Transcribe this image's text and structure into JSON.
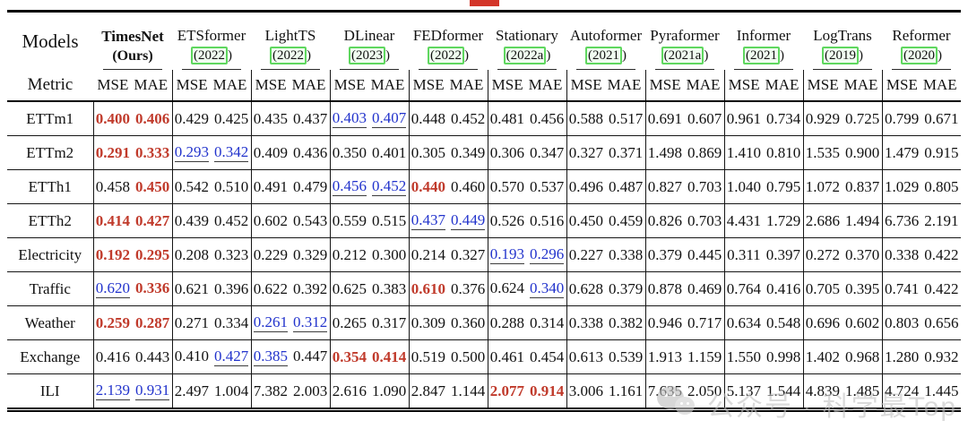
{
  "decorations": {
    "red_fragment_color": "#d3362a"
  },
  "watermark": {
    "icon": "wechat-icon",
    "text": "公众号 · 科学最Top"
  },
  "colors": {
    "best": "#c03a2b",
    "second": "#2233cc",
    "text": "#111111",
    "link_box_border": "#5fd75f"
  },
  "table": {
    "corner_models_label": "Models",
    "corner_metric_label": "Metric",
    "metric_labels": [
      "MSE",
      "MAE"
    ],
    "models": [
      {
        "name": "TimesNet",
        "year": "(Ours)",
        "ours": true
      },
      {
        "name": "ETSformer",
        "year": "2022"
      },
      {
        "name": "LightTS",
        "year": "2022"
      },
      {
        "name": "DLinear",
        "year": "2023"
      },
      {
        "name": "FEDformer",
        "year": "2022"
      },
      {
        "name": "Stationary",
        "year": "2022a"
      },
      {
        "name": "Autoformer",
        "year": "2021"
      },
      {
        "name": "Pyraformer",
        "year": "2021a"
      },
      {
        "name": "Informer",
        "year": "2021"
      },
      {
        "name": "LogTrans",
        "year": "2019"
      },
      {
        "name": "Reformer",
        "year": "2020"
      }
    ],
    "style_legend": {
      "r": "best (red bold)",
      "u": "second-best (blue underlined)",
      "n": "plain"
    },
    "rows": [
      {
        "dataset": "ETTm1",
        "cells": [
          [
            "0.400",
            "r",
            "0.406",
            "r"
          ],
          [
            "0.429",
            "n",
            "0.425",
            "n"
          ],
          [
            "0.435",
            "n",
            "0.437",
            "n"
          ],
          [
            "0.403",
            "u",
            "0.407",
            "u"
          ],
          [
            "0.448",
            "n",
            "0.452",
            "n"
          ],
          [
            "0.481",
            "n",
            "0.456",
            "n"
          ],
          [
            "0.588",
            "n",
            "0.517",
            "n"
          ],
          [
            "0.691",
            "n",
            "0.607",
            "n"
          ],
          [
            "0.961",
            "n",
            "0.734",
            "n"
          ],
          [
            "0.929",
            "n",
            "0.725",
            "n"
          ],
          [
            "0.799",
            "n",
            "0.671",
            "n"
          ]
        ]
      },
      {
        "dataset": "ETTm2",
        "cells": [
          [
            "0.291",
            "r",
            "0.333",
            "r"
          ],
          [
            "0.293",
            "u",
            "0.342",
            "u"
          ],
          [
            "0.409",
            "n",
            "0.436",
            "n"
          ],
          [
            "0.350",
            "n",
            "0.401",
            "n"
          ],
          [
            "0.305",
            "n",
            "0.349",
            "n"
          ],
          [
            "0.306",
            "n",
            "0.347",
            "n"
          ],
          [
            "0.327",
            "n",
            "0.371",
            "n"
          ],
          [
            "1.498",
            "n",
            "0.869",
            "n"
          ],
          [
            "1.410",
            "n",
            "0.810",
            "n"
          ],
          [
            "1.535",
            "n",
            "0.900",
            "n"
          ],
          [
            "1.479",
            "n",
            "0.915",
            "n"
          ]
        ]
      },
      {
        "dataset": "ETTh1",
        "cells": [
          [
            "0.458",
            "n",
            "0.450",
            "r"
          ],
          [
            "0.542",
            "n",
            "0.510",
            "n"
          ],
          [
            "0.491",
            "n",
            "0.479",
            "n"
          ],
          [
            "0.456",
            "u",
            "0.452",
            "u"
          ],
          [
            "0.440",
            "r",
            "0.460",
            "n"
          ],
          [
            "0.570",
            "n",
            "0.537",
            "n"
          ],
          [
            "0.496",
            "n",
            "0.487",
            "n"
          ],
          [
            "0.827",
            "n",
            "0.703",
            "n"
          ],
          [
            "1.040",
            "n",
            "0.795",
            "n"
          ],
          [
            "1.072",
            "n",
            "0.837",
            "n"
          ],
          [
            "1.029",
            "n",
            "0.805",
            "n"
          ]
        ]
      },
      {
        "dataset": "ETTh2",
        "cells": [
          [
            "0.414",
            "r",
            "0.427",
            "r"
          ],
          [
            "0.439",
            "n",
            "0.452",
            "n"
          ],
          [
            "0.602",
            "n",
            "0.543",
            "n"
          ],
          [
            "0.559",
            "n",
            "0.515",
            "n"
          ],
          [
            "0.437",
            "u",
            "0.449",
            "u"
          ],
          [
            "0.526",
            "n",
            "0.516",
            "n"
          ],
          [
            "0.450",
            "n",
            "0.459",
            "n"
          ],
          [
            "0.826",
            "n",
            "0.703",
            "n"
          ],
          [
            "4.431",
            "n",
            "1.729",
            "n"
          ],
          [
            "2.686",
            "n",
            "1.494",
            "n"
          ],
          [
            "6.736",
            "n",
            "2.191",
            "n"
          ]
        ]
      },
      {
        "dataset": "Electricity",
        "cells": [
          [
            "0.192",
            "r",
            "0.295",
            "r"
          ],
          [
            "0.208",
            "n",
            "0.323",
            "n"
          ],
          [
            "0.229",
            "n",
            "0.329",
            "n"
          ],
          [
            "0.212",
            "n",
            "0.300",
            "n"
          ],
          [
            "0.214",
            "n",
            "0.327",
            "n"
          ],
          [
            "0.193",
            "u",
            "0.296",
            "u"
          ],
          [
            "0.227",
            "n",
            "0.338",
            "n"
          ],
          [
            "0.379",
            "n",
            "0.445",
            "n"
          ],
          [
            "0.311",
            "n",
            "0.397",
            "n"
          ],
          [
            "0.272",
            "n",
            "0.370",
            "n"
          ],
          [
            "0.338",
            "n",
            "0.422",
            "n"
          ]
        ]
      },
      {
        "dataset": "Traffic",
        "cells": [
          [
            "0.620",
            "u",
            "0.336",
            "r"
          ],
          [
            "0.621",
            "n",
            "0.396",
            "n"
          ],
          [
            "0.622",
            "n",
            "0.392",
            "n"
          ],
          [
            "0.625",
            "n",
            "0.383",
            "n"
          ],
          [
            "0.610",
            "r",
            "0.376",
            "n"
          ],
          [
            "0.624",
            "n",
            "0.340",
            "u"
          ],
          [
            "0.628",
            "n",
            "0.379",
            "n"
          ],
          [
            "0.878",
            "n",
            "0.469",
            "n"
          ],
          [
            "0.764",
            "n",
            "0.416",
            "n"
          ],
          [
            "0.705",
            "n",
            "0.395",
            "n"
          ],
          [
            "0.741",
            "n",
            "0.422",
            "n"
          ]
        ]
      },
      {
        "dataset": "Weather",
        "cells": [
          [
            "0.259",
            "r",
            "0.287",
            "r"
          ],
          [
            "0.271",
            "n",
            "0.334",
            "n"
          ],
          [
            "0.261",
            "u",
            "0.312",
            "u"
          ],
          [
            "0.265",
            "n",
            "0.317",
            "n"
          ],
          [
            "0.309",
            "n",
            "0.360",
            "n"
          ],
          [
            "0.288",
            "n",
            "0.314",
            "n"
          ],
          [
            "0.338",
            "n",
            "0.382",
            "n"
          ],
          [
            "0.946",
            "n",
            "0.717",
            "n"
          ],
          [
            "0.634",
            "n",
            "0.548",
            "n"
          ],
          [
            "0.696",
            "n",
            "0.602",
            "n"
          ],
          [
            "0.803",
            "n",
            "0.656",
            "n"
          ]
        ]
      },
      {
        "dataset": "Exchange",
        "cells": [
          [
            "0.416",
            "n",
            "0.443",
            "n"
          ],
          [
            "0.410",
            "n",
            "0.427",
            "u"
          ],
          [
            "0.385",
            "u",
            "0.447",
            "n"
          ],
          [
            "0.354",
            "r",
            "0.414",
            "r"
          ],
          [
            "0.519",
            "n",
            "0.500",
            "n"
          ],
          [
            "0.461",
            "n",
            "0.454",
            "n"
          ],
          [
            "0.613",
            "n",
            "0.539",
            "n"
          ],
          [
            "1.913",
            "n",
            "1.159",
            "n"
          ],
          [
            "1.550",
            "n",
            "0.998",
            "n"
          ],
          [
            "1.402",
            "n",
            "0.968",
            "n"
          ],
          [
            "1.280",
            "n",
            "0.932",
            "n"
          ]
        ]
      },
      {
        "dataset": "ILI",
        "cells": [
          [
            "2.139",
            "u",
            "0.931",
            "u"
          ],
          [
            "2.497",
            "n",
            "1.004",
            "n"
          ],
          [
            "7.382",
            "n",
            "2.003",
            "n"
          ],
          [
            "2.616",
            "n",
            "1.090",
            "n"
          ],
          [
            "2.847",
            "n",
            "1.144",
            "n"
          ],
          [
            "2.077",
            "r",
            "0.914",
            "r"
          ],
          [
            "3.006",
            "n",
            "1.161",
            "n"
          ],
          [
            "7.635",
            "n",
            "2.050",
            "n"
          ],
          [
            "5.137",
            "n",
            "1.544",
            "n"
          ],
          [
            "4.839",
            "n",
            "1.485",
            "n"
          ],
          [
            "4.724",
            "n",
            "1.445",
            "n"
          ]
        ]
      }
    ]
  }
}
